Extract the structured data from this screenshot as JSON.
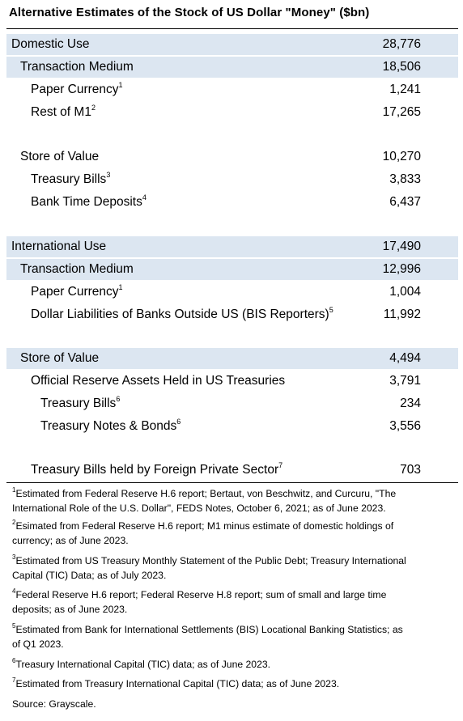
{
  "title": "Alternative Estimates of the Stock of US Dollar \"Money\" ($bn)",
  "rows": [
    {
      "label": "Domestic Use",
      "sup": "",
      "value": "28,776"
    },
    {
      "label": "Transaction Medium",
      "sup": "",
      "value": "18,506"
    },
    {
      "label": "Paper Currency",
      "sup": "1",
      "value": "1,241"
    },
    {
      "label": "Rest of M1",
      "sup": "2",
      "value": "17,265"
    },
    {
      "label": "Store of Value",
      "sup": "",
      "value": "10,270"
    },
    {
      "label": "Treasury Bills",
      "sup": "3",
      "value": "3,833"
    },
    {
      "label": "Bank Time Deposits",
      "sup": "4",
      "value": "6,437"
    },
    {
      "label": "International Use",
      "sup": "",
      "value": "17,490"
    },
    {
      "label": "Transaction Medium",
      "sup": "",
      "value": "12,996"
    },
    {
      "label": "Paper Currency",
      "sup": "1",
      "value": "1,004"
    },
    {
      "label": "Dollar Liabilities of Banks Outside US (BIS Reporters)",
      "sup": "5",
      "value": "11,992"
    },
    {
      "label": "Store of Value",
      "sup": "",
      "value": "4,494"
    },
    {
      "label": "Official Reserve Assets Held in US Treasuries",
      "sup": "",
      "value": "3,791"
    },
    {
      "label": "Treasury Bills",
      "sup": "6",
      "value": "234"
    },
    {
      "label": "Treasury Notes & Bonds",
      "sup": "6",
      "value": "3,556"
    },
    {
      "label": "Treasury Bills held by Foreign Private Sector",
      "sup": "7",
      "value": "703"
    }
  ],
  "footnotes": [
    {
      "num": "1",
      "line1": "Estimated from Federal Reserve H.6 report; Bertaut, von Beschwitz, and Curcuru, \"The",
      "line2": "International Role of the U.S. Dollar\", FEDS Notes, October 6, 2021; as of June 2023."
    },
    {
      "num": "2",
      "line1": "Esimated from Federal Reserve H.6 report; M1 minus estimate of domestic holdings of",
      "line2": "currency; as of June 2023."
    },
    {
      "num": "3",
      "line1": "Estimated from US Treasury Monthly Statement of the Public Debt; Treasury International",
      "line2": "Capital (TIC) Data; as of July 2023."
    },
    {
      "num": "4",
      "line1": "Federal Reserve H.6 report; Federal Reserve H.8 report; sum of small and large time",
      "line2": "deposits; as of June 2023."
    },
    {
      "num": "5",
      "line1": "Estimated from Bank for International Settlements (BIS) Locational Banking Statistics; as",
      "line2": "of Q1 2023."
    },
    {
      "num": "6",
      "line1": "Treasury International Capital (TIC) data; as of June 2023.",
      "line2": ""
    },
    {
      "num": "7",
      "line1": "Estimated from Treasury International Capital (TIC) data; as of June 2023.",
      "line2": ""
    }
  ],
  "source": "Source: Grayscale."
}
